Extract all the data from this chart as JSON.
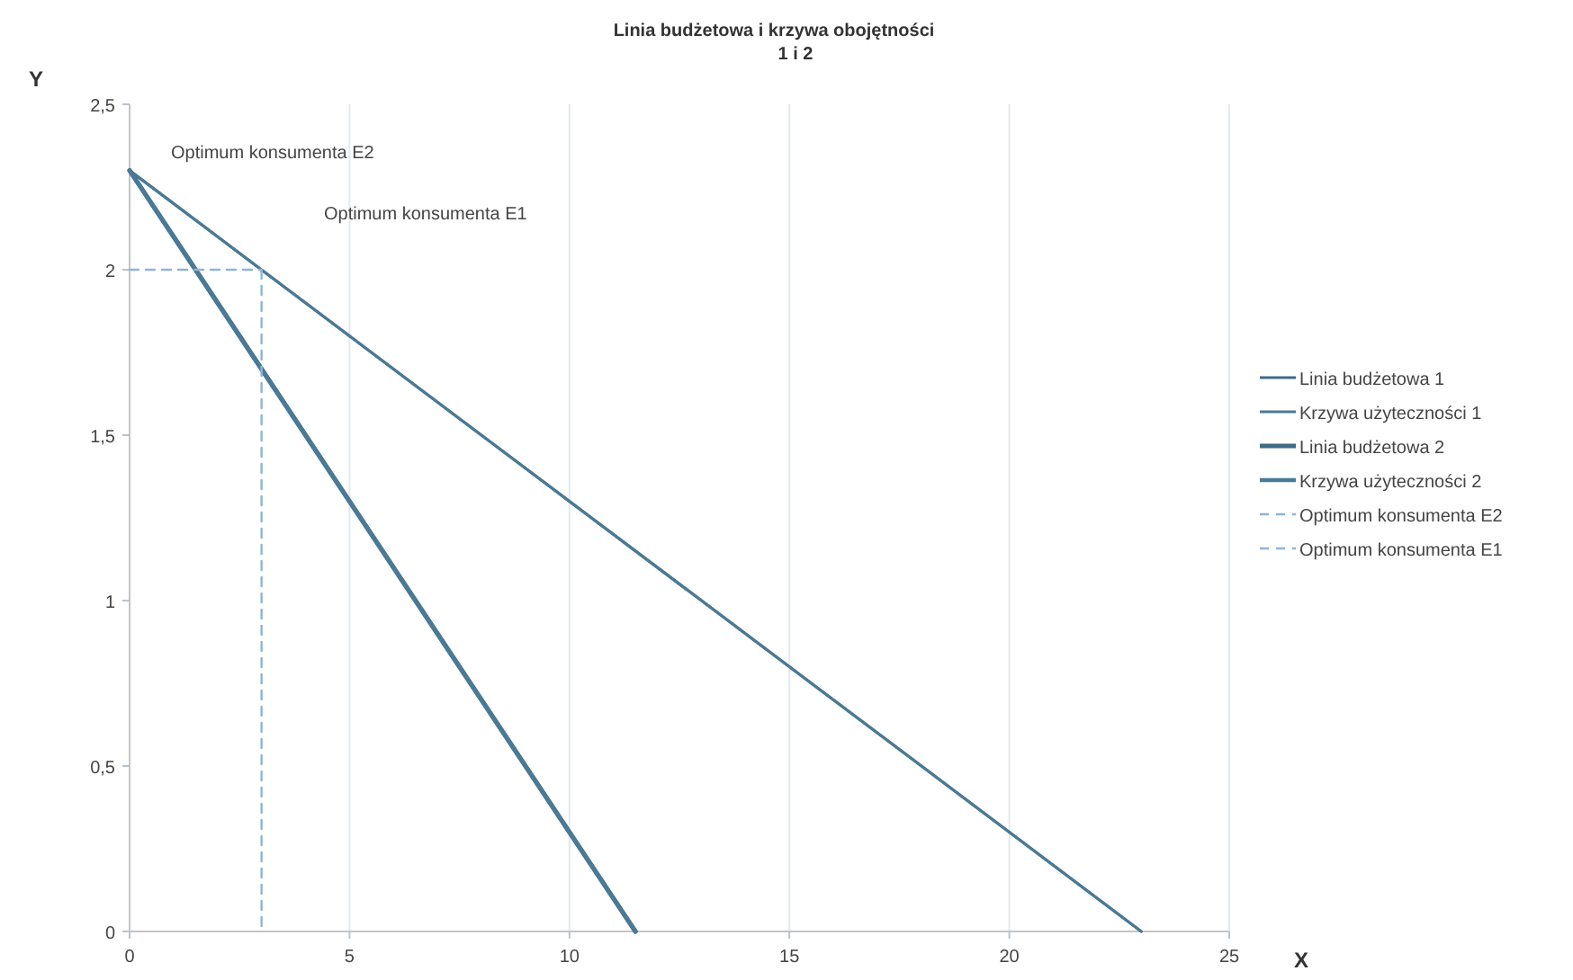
{
  "chart_data": {
    "type": "line",
    "title": "Linia budżetowa  i    krzywa obojętności",
    "subtitle": "1 i 2",
    "xlabel": "X",
    "ylabel": "Y",
    "xlim": [
      0,
      25
    ],
    "xticks": [
      0,
      5,
      10,
      15,
      20,
      25
    ],
    "ylim": [
      0,
      2.5
    ],
    "yticks": [
      {
        "value": 0,
        "label": "0"
      },
      {
        "value": 0.5,
        "label": "0,5"
      },
      {
        "value": 1,
        "label": "1"
      },
      {
        "value": 1.5,
        "label": "1,5"
      },
      {
        "value": 2,
        "label": "2"
      },
      {
        "value": 2.5,
        "label": "2,5"
      }
    ],
    "grid": "x",
    "legend": "right",
    "marker": "none",
    "series": [
      {
        "name": "Linia budżetowa 1",
        "color": "#3f6b86",
        "x": [
          0,
          23
        ],
        "values": [
          2.3,
          0
        ]
      },
      {
        "name": "Krzywa użyteczności 1",
        "color": "#4a7a96",
        "x": [
          0,
          23
        ],
        "values": [
          2.3,
          0
        ]
      },
      {
        "name": "Linia budżetowa 2",
        "color": "#3f6b86",
        "x": [
          0,
          11.5
        ],
        "values": [
          2.3,
          0
        ]
      },
      {
        "name": "Krzywa użyteczności 2",
        "color": "#4a7a96",
        "x": [
          0,
          11.5
        ],
        "values": [
          2.3,
          0
        ]
      },
      {
        "name": "Optimum konsumenta E2",
        "color": "#8fb4d8",
        "line_style": "dashed",
        "x": [
          0,
          3
        ],
        "values": [
          2,
          2
        ]
      },
      {
        "name": "Optimum konsumenta E1",
        "color": "#8fb4d8",
        "line_style": "dashed",
        "x": [
          3,
          3
        ],
        "values": [
          2,
          0
        ]
      }
    ],
    "annotations": [
      "Optimum konsumenta E2",
      "Optimum konsumenta E1"
    ]
  }
}
